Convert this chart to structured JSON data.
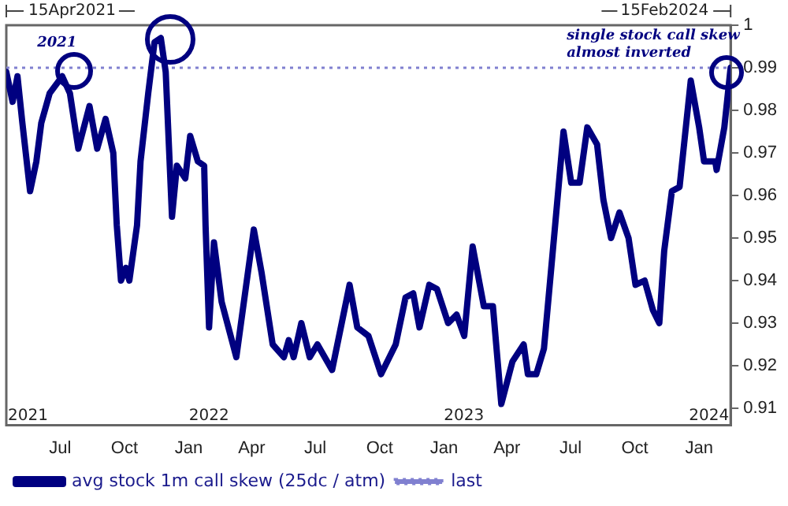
{
  "chart_data": {
    "type": "line",
    "x": [
      "2021-04-15",
      "2021-04-24",
      "2021-05-01",
      "2021-05-08",
      "2021-05-19",
      "2021-05-28",
      "2021-06-04",
      "2021-06-16",
      "2021-07-04",
      "2021-07-15",
      "2021-07-27",
      "2021-08-12",
      "2021-08-23",
      "2021-09-04",
      "2021-09-15",
      "2021-09-20",
      "2021-09-26",
      "2021-10-03",
      "2021-10-08",
      "2021-10-19",
      "2021-10-24",
      "2021-11-04",
      "2021-11-13",
      "2021-11-22",
      "2021-11-29",
      "2021-12-08",
      "2021-12-15",
      "2021-12-27",
      "2022-01-03",
      "2022-01-14",
      "2022-01-23",
      "2022-01-25",
      "2022-01-30",
      "2022-02-06",
      "2022-02-17",
      "2022-03-10",
      "2022-04-04",
      "2022-04-15",
      "2022-05-01",
      "2022-05-17",
      "2022-05-24",
      "2022-05-31",
      "2022-06-11",
      "2022-06-23",
      "2022-07-04",
      "2022-07-25",
      "2022-08-19",
      "2022-08-30",
      "2022-09-15",
      "2022-10-03",
      "2022-10-24",
      "2022-11-07",
      "2022-11-18",
      "2022-11-27",
      "2022-12-11",
      "2022-12-22",
      "2023-01-07",
      "2023-01-19",
      "2023-01-30",
      "2023-02-11",
      "2023-02-27",
      "2023-03-12",
      "2023-03-24",
      "2023-04-09",
      "2023-04-25",
      "2023-05-01",
      "2023-05-13",
      "2023-05-24",
      "2023-06-09",
      "2023-06-21",
      "2023-07-02",
      "2023-07-14",
      "2023-07-25",
      "2023-08-08",
      "2023-08-17",
      "2023-08-28",
      "2023-09-09",
      "2023-09-22",
      "2023-10-02",
      "2023-10-15",
      "2023-10-27",
      "2023-11-05",
      "2023-11-12",
      "2023-11-23",
      "2023-12-04",
      "2023-12-20",
      "2024-01-01",
      "2024-01-08",
      "2024-01-24",
      "2024-01-26",
      "2024-02-06",
      "2024-02-15"
    ],
    "series": [
      {
        "name": "avg stock 1m call skew (25dc / atm)",
        "color": "#000080",
        "values": [
          0.989,
          0.982,
          0.988,
          0.977,
          0.961,
          0.968,
          0.977,
          0.984,
          0.988,
          0.984,
          0.971,
          0.981,
          0.971,
          0.978,
          0.97,
          0.953,
          0.94,
          0.943,
          0.94,
          0.953,
          0.968,
          0.984,
          0.996,
          0.997,
          0.989,
          0.955,
          0.967,
          0.964,
          0.974,
          0.968,
          0.967,
          0.953,
          0.929,
          0.949,
          0.935,
          0.922,
          0.952,
          0.942,
          0.925,
          0.922,
          0.926,
          0.922,
          0.93,
          0.922,
          0.925,
          0.919,
          0.939,
          0.929,
          0.927,
          0.918,
          0.925,
          0.936,
          0.937,
          0.929,
          0.939,
          0.938,
          0.93,
          0.932,
          0.927,
          0.948,
          0.934,
          0.934,
          0.911,
          0.921,
          0.925,
          0.918,
          0.918,
          0.924,
          0.953,
          0.975,
          0.963,
          0.963,
          0.976,
          0.972,
          0.959,
          0.95,
          0.956,
          0.95,
          0.939,
          0.94,
          0.933,
          0.93,
          0.947,
          0.961,
          0.962,
          0.987,
          0.976,
          0.968,
          0.968,
          0.966,
          0.976,
          0.99
        ]
      }
    ],
    "ylim": [
      0.906,
      1.0
    ],
    "yticks": [
      0.91,
      0.92,
      0.93,
      0.94,
      0.95,
      0.96,
      0.97,
      0.98,
      0.99,
      1
    ],
    "xlim": [
      "2021-04-15",
      "2024-02-15"
    ],
    "xticks": [
      {
        "value": "2021-07-01",
        "label": "Jul"
      },
      {
        "value": "2021-10-01",
        "label": "Oct"
      },
      {
        "value": "2022-01-01",
        "label": "Jan"
      },
      {
        "value": "2022-04-01",
        "label": "Apr"
      },
      {
        "value": "2022-07-01",
        "label": "Jul"
      },
      {
        "value": "2022-10-01",
        "label": "Oct"
      },
      {
        "value": "2023-01-01",
        "label": "Jan"
      },
      {
        "value": "2023-04-01",
        "label": "Apr"
      },
      {
        "value": "2023-07-01",
        "label": "Jul"
      },
      {
        "value": "2023-10-01",
        "label": "Oct"
      },
      {
        "value": "2024-01-01",
        "label": "Jan"
      }
    ],
    "ref_lines": [
      {
        "axis": "y",
        "value": 0.99,
        "label": "last",
        "color": "#8080d0",
        "line_style": "dotted"
      }
    ],
    "annotations": [
      "15Apr2021",
      "15Feb2024",
      "2021",
      "2022",
      "2023",
      "2024",
      "2021",
      "single stock call skew almost inverted"
    ],
    "grid": false,
    "legend": "bottom",
    "line_style": "solid",
    "marker": "none"
  }
}
